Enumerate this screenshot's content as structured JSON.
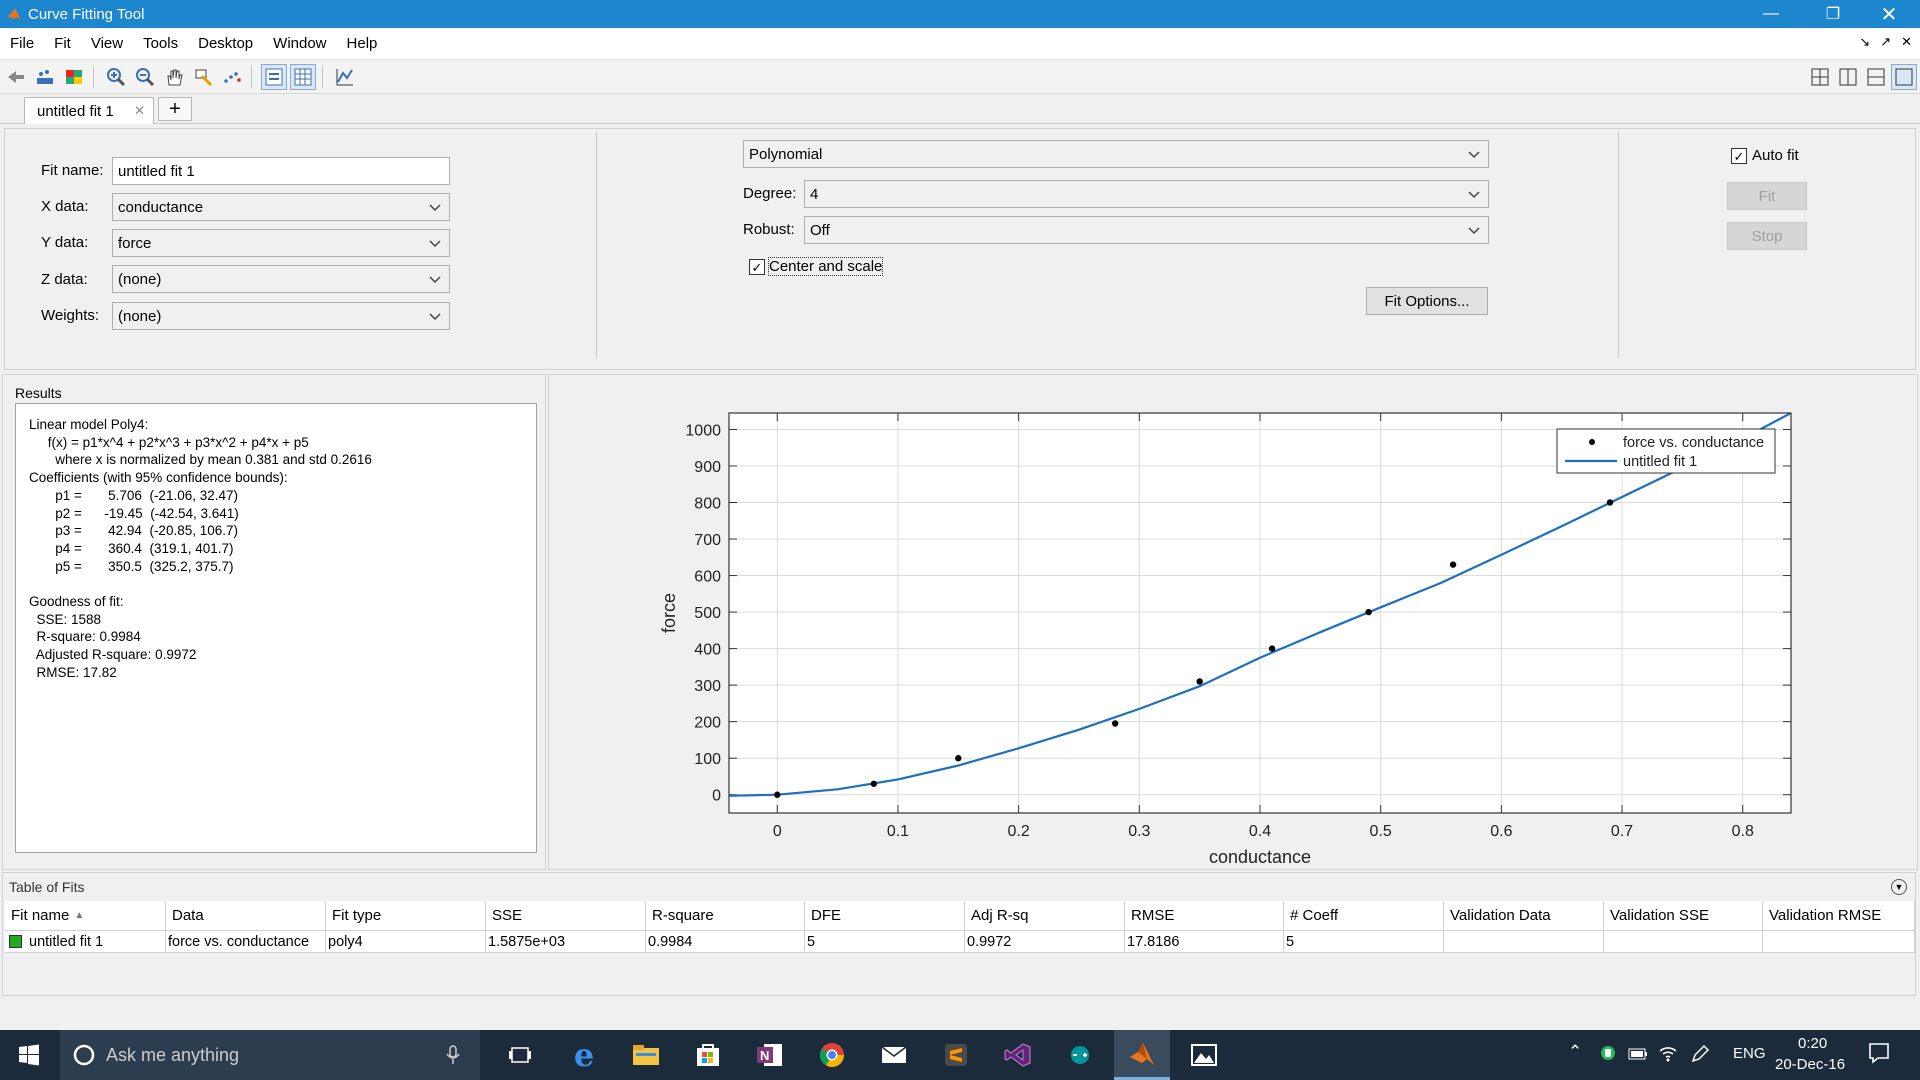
{
  "window": {
    "title": "Curve Fitting Tool"
  },
  "menu": [
    "File",
    "Fit",
    "View",
    "Tools",
    "Desktop",
    "Window",
    "Help"
  ],
  "tab": {
    "label": "untitled fit 1",
    "add_label": "+"
  },
  "fit": {
    "name_label": "Fit name:",
    "name_value": "untitled fit 1",
    "x_label": "X data:",
    "x_value": "conductance",
    "y_label": "Y data:",
    "y_value": "force",
    "z_label": "Z data:",
    "z_value": "(none)",
    "w_label": "Weights:",
    "w_value": "(none)",
    "type_value": "Polynomial",
    "degree_label": "Degree:",
    "degree_value": "4",
    "robust_label": "Robust:",
    "robust_value": "Off",
    "center_scale_label": "Center and scale",
    "center_scale_checked": true,
    "fit_options_label": "Fit Options...",
    "auto_fit_label": "Auto fit",
    "auto_fit_checked": true,
    "fit_button": "Fit",
    "stop_button": "Stop"
  },
  "results": {
    "header": "Results",
    "text": "Linear model Poly4:\n     f(x) = p1*x^4 + p2*x^3 + p3*x^2 + p4*x + p5\n       where x is normalized by mean 0.381 and std 0.2616\nCoefficients (with 95% confidence bounds):\n       p1 =       5.706  (-21.06, 32.47)\n       p2 =      -19.45  (-42.54, 3.641)\n       p3 =       42.94  (-20.85, 106.7)\n       p4 =       360.4  (319.1, 401.7)\n       p5 =       350.5  (325.2, 375.7)\n\nGoodness of fit:\n  SSE: 1588\n  R-square: 0.9984\n  Adjusted R-square: 0.9972\n  RMSE: 17.82"
  },
  "chart_data": {
    "type": "scatter",
    "xlabel": "conductance",
    "ylabel": "force",
    "xlim": [
      -0.04,
      0.84
    ],
    "ylim": [
      -50,
      1045
    ],
    "xticks": [
      0,
      0.1,
      0.2,
      0.3,
      0.4,
      0.5,
      0.6,
      0.7,
      0.8
    ],
    "yticks": [
      0,
      100,
      200,
      300,
      400,
      500,
      600,
      700,
      800,
      900,
      1000
    ],
    "grid": true,
    "legend_position": "top-right",
    "series": [
      {
        "name": "force vs. conductance",
        "style": "points",
        "color": "#000000",
        "x": [
          0,
          0.08,
          0.15,
          0.28,
          0.35,
          0.41,
          0.49,
          0.56,
          0.69
        ],
        "y": [
          0,
          30,
          100,
          195,
          310,
          400,
          500,
          630,
          800
        ]
      },
      {
        "name": "untitled fit 1",
        "style": "line",
        "color": "#1f6fbf",
        "x": [
          -0.04,
          0,
          0.05,
          0.1,
          0.15,
          0.2,
          0.25,
          0.3,
          0.35,
          0.4,
          0.45,
          0.5,
          0.55,
          0.6,
          0.65,
          0.7,
          0.75,
          0.8,
          0.84
        ],
        "y": [
          -3,
          0,
          15,
          42,
          80,
          127,
          178,
          235,
          297,
          375,
          445,
          513,
          580,
          657,
          735,
          815,
          895,
          975,
          1045
        ]
      }
    ]
  },
  "table_of_fits": {
    "header": "Table of Fits",
    "columns": [
      "Fit name",
      "Data",
      "Fit type",
      "SSE",
      "R-square",
      "DFE",
      "Adj R-sq",
      "RMSE",
      "# Coeff",
      "Validation Data",
      "Validation SSE",
      "Validation RMSE"
    ],
    "rows": [
      [
        "untitled fit 1",
        "force vs. conductance",
        "poly4",
        "1.5875e+03",
        "0.9984",
        "5",
        "0.9972",
        "17.8186",
        "5",
        "",
        "",
        ""
      ]
    ],
    "status_color": "#22aa22"
  },
  "taskbar": {
    "search_placeholder": "Ask me anything",
    "language": "ENG",
    "time": "0:20",
    "date": "20-Dec-16"
  }
}
